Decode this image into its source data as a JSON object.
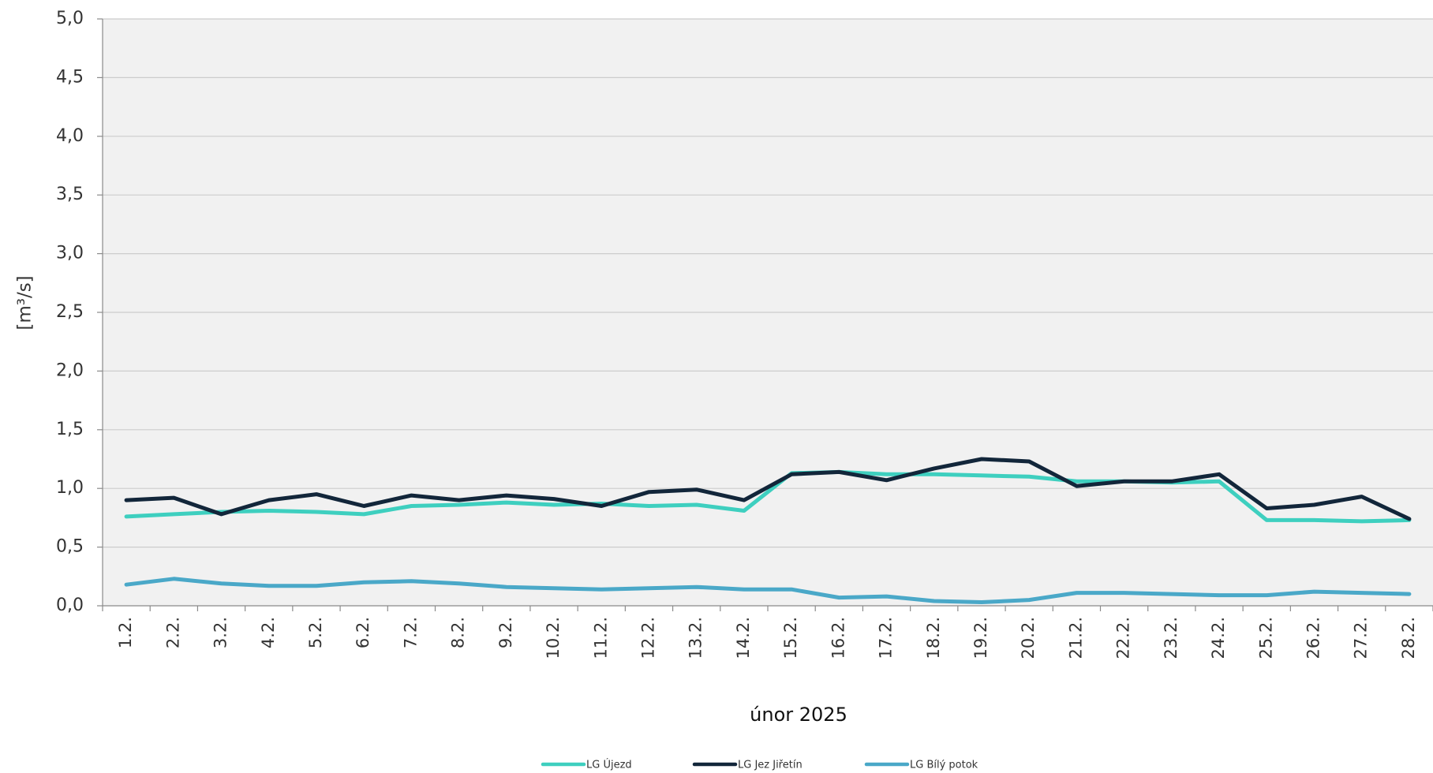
{
  "chart_data": {
    "type": "line",
    "title": "",
    "xlabel": "únor 2025",
    "ylabel": "[m³/s]",
    "ylim": [
      0,
      5
    ],
    "yticks": [
      "0,0",
      "0,5",
      "1,0",
      "1,5",
      "2,0",
      "2,5",
      "3,0",
      "3,5",
      "4,0",
      "4,5",
      "5,0"
    ],
    "grid": true,
    "legend_position": "bottom",
    "categories": [
      "1.",
      "2.",
      "3.",
      "4.",
      "5.",
      "6.",
      "7.",
      "8.",
      "9.",
      "10.",
      "11.",
      "12.",
      "13.",
      "14.",
      "15.",
      "16.",
      "17.",
      "18.",
      "19.",
      "20.",
      "21.",
      "22.",
      "23.",
      "24.",
      "25.",
      "26.",
      "27.",
      "28."
    ],
    "category_suffix": ".",
    "tick_labels": [
      "1.2.",
      "2.2.",
      "3.2.",
      "4.2.",
      "5.2.",
      "6.2.",
      "7.2.",
      "8.2.",
      "9.2.",
      "10.2.",
      "11.2.",
      "12.2.",
      "13.2.",
      "14.2.",
      "15.2.",
      "16.2.",
      "17.2.",
      "18.2.",
      "19.2.",
      "20.2.",
      "21.2.",
      "22.2.",
      "23.2.",
      "24.2.",
      "25.2.",
      "26.2.",
      "27.2.",
      "28.2."
    ],
    "series": [
      {
        "name": "LG Újezd",
        "color": "#3ecfbf",
        "values": [
          0.76,
          0.78,
          0.8,
          0.81,
          0.8,
          0.78,
          0.85,
          0.86,
          0.88,
          0.86,
          0.87,
          0.85,
          0.86,
          0.81,
          1.13,
          1.14,
          1.12,
          1.12,
          1.11,
          1.1,
          1.06,
          1.06,
          1.05,
          1.06,
          0.73,
          0.73,
          0.72,
          0.73
        ]
      },
      {
        "name": "LG Jez Jiřetín",
        "color": "#12263a",
        "values": [
          0.9,
          0.92,
          0.78,
          0.9,
          0.95,
          0.85,
          0.94,
          0.9,
          0.94,
          0.91,
          0.85,
          0.97,
          0.99,
          0.9,
          1.12,
          1.14,
          1.07,
          1.17,
          1.25,
          1.23,
          1.02,
          1.06,
          1.06,
          1.12,
          0.83,
          0.86,
          0.93,
          0.74
        ]
      },
      {
        "name": "LG Bílý potok",
        "color": "#4aa8c8",
        "values": [
          0.18,
          0.23,
          0.19,
          0.17,
          0.17,
          0.2,
          0.21,
          0.19,
          0.16,
          0.15,
          0.14,
          0.15,
          0.16,
          0.14,
          0.14,
          0.07,
          0.08,
          0.04,
          0.03,
          0.05,
          0.11,
          0.11,
          0.1,
          0.09,
          0.09,
          0.12,
          0.11,
          0.1
        ]
      }
    ],
    "colors": {
      "plot_background": "#f1f1f1",
      "grid": "#cccccc",
      "axis": "#8a8a8a"
    }
  }
}
